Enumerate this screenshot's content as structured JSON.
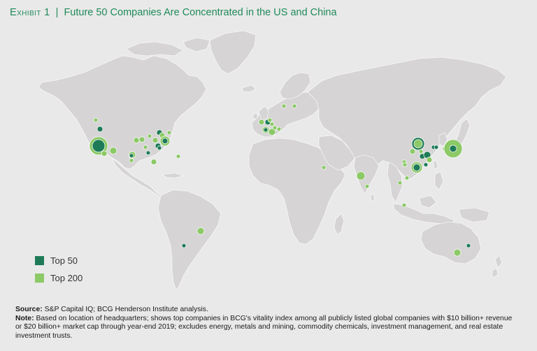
{
  "title": {
    "exhibit": "Exhibit 1",
    "separator": "|",
    "text": "Future 50 Companies Are Concentrated in the US and China"
  },
  "legend": {
    "items": [
      {
        "label": "Top 50",
        "color": "#1e7b58"
      },
      {
        "label": "Top 200",
        "color": "#8cc967"
      }
    ]
  },
  "map": {
    "land_color": "#d6d4d5",
    "background": "#e9e9e9",
    "marker_stroke": "#ffffff"
  },
  "footer": {
    "source_label": "Source:",
    "source_text": "S&P Capital IQ; BCG Henderson Institute analysis.",
    "note_label": "Note:",
    "note_text": "Based on location of headquarters; shows top companies in BCG's vitality index among all publicly listed global companies with $10 billion+ revenue or $20 billion+ market cap through year-end 2019; excludes energy, metals and mining, commodity chemicals, investment management, and real estate investment trusts."
  }
}
